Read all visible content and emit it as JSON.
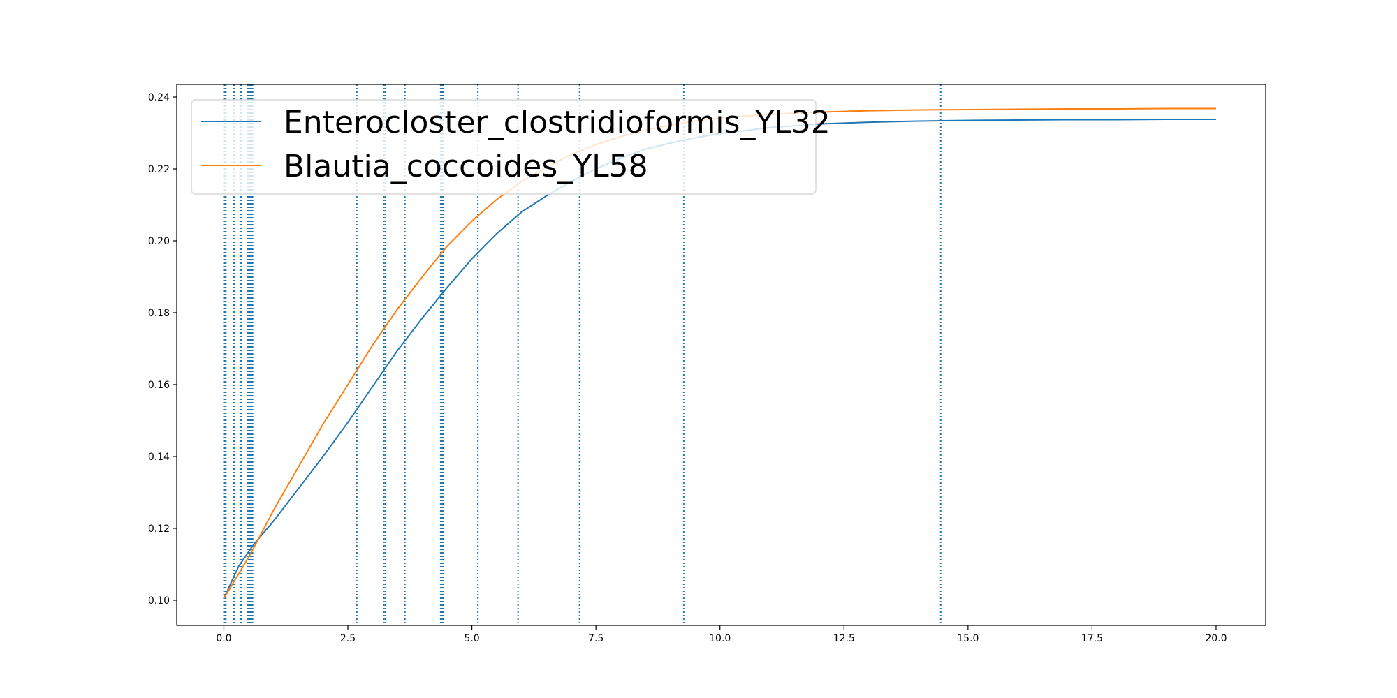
{
  "chart_data": {
    "type": "line",
    "title": "",
    "xlabel": "",
    "ylabel": "",
    "xlim": [
      -0.95,
      21.0
    ],
    "ylim": [
      0.093,
      0.2435
    ],
    "x_ticks": [
      0.0,
      2.5,
      5.0,
      7.5,
      10.0,
      12.5,
      15.0,
      17.5,
      20.0
    ],
    "x_tick_labels": [
      "0.0",
      "2.5",
      "5.0",
      "7.5",
      "10.0",
      "12.5",
      "15.0",
      "17.5",
      "20.0"
    ],
    "y_ticks": [
      0.1,
      0.12,
      0.14,
      0.16,
      0.18,
      0.2,
      0.22,
      0.24
    ],
    "y_tick_labels": [
      "0.10",
      "0.12",
      "0.14",
      "0.16",
      "0.18",
      "0.20",
      "0.22",
      "0.24"
    ],
    "grid": false,
    "legend_position": "upper-left",
    "series": [
      {
        "name": "Enterocloster_clostridioformis_YL32",
        "color": "#1f77b4",
        "x": [
          0.0,
          0.1,
          0.2,
          0.3,
          0.4,
          0.5,
          0.6,
          1.0,
          1.5,
          2.0,
          2.5,
          3.0,
          3.5,
          4.0,
          4.5,
          5.0,
          5.5,
          6.0,
          6.5,
          7.0,
          7.5,
          8.0,
          8.5,
          9.0,
          9.5,
          10.0,
          11.0,
          12.0,
          13.0,
          14.0,
          15.0,
          16.0,
          17.0,
          18.0,
          19.0,
          20.0
        ],
        "y": [
          0.1005,
          0.1035,
          0.1065,
          0.1095,
          0.1115,
          0.1135,
          0.1155,
          0.122,
          0.131,
          0.14,
          0.1495,
          0.1595,
          0.1695,
          0.1785,
          0.187,
          0.195,
          0.202,
          0.208,
          0.2125,
          0.2165,
          0.22,
          0.223,
          0.2255,
          0.2272,
          0.2287,
          0.2298,
          0.2315,
          0.2325,
          0.233,
          0.2333,
          0.2335,
          0.2336,
          0.2337,
          0.2337,
          0.2338,
          0.2338
        ]
      },
      {
        "name": "Blautia_coccoides_YL58",
        "color": "#ff7f0e",
        "x": [
          0.0,
          0.1,
          0.2,
          0.3,
          0.4,
          0.5,
          0.6,
          1.0,
          1.5,
          2.0,
          2.5,
          3.0,
          3.5,
          4.0,
          4.5,
          5.0,
          5.5,
          6.0,
          6.5,
          7.0,
          7.5,
          8.0,
          8.5,
          9.0,
          9.5,
          10.0,
          11.0,
          12.0,
          13.0,
          14.0,
          15.0,
          16.0,
          17.0,
          18.0,
          19.0,
          20.0
        ],
        "y": [
          0.1005,
          0.1028,
          0.1051,
          0.1074,
          0.1097,
          0.112,
          0.1145,
          0.125,
          0.137,
          0.149,
          0.16,
          0.171,
          0.181,
          0.19,
          0.1985,
          0.2055,
          0.2115,
          0.2165,
          0.2205,
          0.224,
          0.2268,
          0.229,
          0.2308,
          0.2322,
          0.2333,
          0.2342,
          0.2352,
          0.2358,
          0.2362,
          0.2364,
          0.2365,
          0.2366,
          0.2367,
          0.2367,
          0.2368,
          0.2368
        ]
      }
    ],
    "vertical_lines": {
      "color": "#1f77b4",
      "style": "dotted",
      "x": [
        0.0,
        0.02,
        0.04,
        0.2,
        0.22,
        0.33,
        0.35,
        0.48,
        0.5,
        0.52,
        0.54,
        0.56,
        0.58,
        2.68,
        3.22,
        3.25,
        3.65,
        4.37,
        4.4,
        4.42,
        5.12,
        5.93,
        7.17,
        9.27,
        14.45
      ]
    }
  }
}
